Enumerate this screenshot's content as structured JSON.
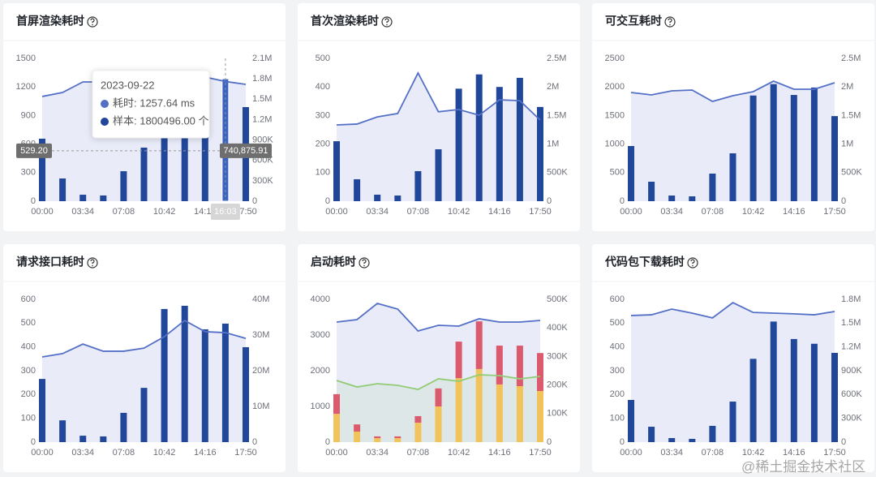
{
  "chart_data": [
    {
      "type": "combo",
      "title": "首屏渲染耗时",
      "categories": [
        "00:00",
        null,
        "03:34",
        null,
        "07:08",
        null,
        "10:42",
        null,
        "14:16",
        null,
        "17:50"
      ],
      "ylim": [
        0,
        1500
      ],
      "yticks": [
        0,
        300,
        600,
        900,
        1200,
        1500
      ],
      "y2lim": [
        0,
        2100000
      ],
      "y2ticks": [
        0,
        {
          "value": 300000,
          "label": "300K"
        },
        {
          "value": 600000,
          "label": "600K"
        },
        {
          "value": 900000,
          "label": "900K"
        },
        {
          "value": 1200000,
          "label": "1.2M"
        },
        {
          "value": 1500000,
          "label": "1.5M"
        },
        {
          "value": 1800000,
          "label": "1.8M"
        },
        {
          "value": 2100000,
          "label": "2.1M"
        }
      ],
      "series": [
        {
          "type": "line",
          "area": true,
          "color": "#5470c6",
          "values": [
            1100,
            1142,
            1253,
            1253,
            1250,
            1260,
            1270,
            1280,
            1304,
            1257.64,
            1227
          ]
        },
        {
          "type": "bar",
          "axis": "y2",
          "color": "#21479b",
          "values": [
            919000,
            334000,
            95000,
            84000,
            441000,
            788000,
            1100000,
            1500000,
            1700000,
            1800496,
            1384000
          ]
        }
      ],
      "hover_index": 9,
      "pointer": {
        "y": 529.2,
        "y_label": "529.20",
        "y2": 740875.91,
        "y2_label": "740,875.91",
        "x_label": "16:03"
      },
      "tooltip": {
        "title": "2023-09-22",
        "rows": [
          "耗时: 1257.64 ms",
          "样本: 1800496.00 个"
        ]
      }
    },
    {
      "type": "combo",
      "title": "首次渲染耗时",
      "categories": [
        "00:00",
        null,
        "03:34",
        null,
        "07:08",
        null,
        "10:42",
        null,
        "14:16",
        null,
        "17:50"
      ],
      "ylim": [
        0,
        500
      ],
      "yticks": [
        0,
        100,
        200,
        300,
        400,
        500
      ],
      "y2lim": [
        0,
        2500000
      ],
      "y2ticks": [
        0,
        {
          "value": 500000,
          "label": "500K"
        },
        {
          "value": 1000000,
          "label": "1M"
        },
        {
          "value": 1500000,
          "label": "1.5M"
        },
        {
          "value": 2000000,
          "label": "2M"
        },
        {
          "value": 2500000,
          "label": "2.5M"
        }
      ],
      "series": [
        {
          "type": "line",
          "area": true,
          "color": "#5470c6",
          "values": [
            267,
            270,
            295,
            307,
            449,
            313,
            321,
            301,
            355,
            352,
            284
          ]
        },
        {
          "type": "bar",
          "axis": "y2",
          "color": "#21479b",
          "values": [
            1050000,
            384000,
            114000,
            99000,
            526000,
            909000,
            1970000,
            2220000,
            2000000,
            2160000,
            1650000
          ]
        }
      ]
    },
    {
      "type": "combo",
      "title": "可交互耗时",
      "categories": [
        "00:00",
        null,
        "03:34",
        null,
        "07:08",
        null,
        "10:42",
        null,
        "14:16",
        null,
        "17:50"
      ],
      "ylim": [
        0,
        2500
      ],
      "yticks": [
        0,
        500,
        1000,
        1500,
        2000,
        2500
      ],
      "y2lim": [
        0,
        2500000
      ],
      "y2ticks": [
        0,
        {
          "value": 500000,
          "label": "500K"
        },
        {
          "value": 1000000,
          "label": "1M"
        },
        {
          "value": 1500000,
          "label": "1.5M"
        },
        {
          "value": 2000000,
          "label": "2M"
        },
        {
          "value": 2500000,
          "label": "2.5M"
        }
      ],
      "series": [
        {
          "type": "line",
          "area": true,
          "color": "#5470c6",
          "values": [
            1903,
            1861,
            1932,
            1946,
            1747,
            1847,
            1918,
            2102,
            1960,
            1960,
            2074
          ]
        },
        {
          "type": "bar",
          "axis": "y2",
          "color": "#21479b",
          "values": [
            966000,
            341000,
            99000,
            85000,
            483000,
            838000,
            1850000,
            2050000,
            1860000,
            1990000,
            1490000
          ]
        }
      ]
    },
    {
      "type": "combo",
      "title": "请求接口耗时",
      "categories": [
        "00:00",
        null,
        "03:34",
        null,
        "07:08",
        null,
        "10:42",
        null,
        "14:16",
        null,
        "17:50"
      ],
      "ylim": [
        0,
        600
      ],
      "yticks": [
        0,
        100,
        200,
        300,
        400,
        500,
        600
      ],
      "y2lim": [
        0,
        40000000
      ],
      "y2ticks": [
        0,
        {
          "value": 10000000,
          "label": "10M"
        },
        {
          "value": 20000000,
          "label": "20M"
        },
        {
          "value": 30000000,
          "label": "30M"
        },
        {
          "value": 40000000,
          "label": "40M"
        }
      ],
      "series": [
        {
          "type": "line",
          "area": true,
          "color": "#5470c6",
          "values": [
            358,
            372,
            412,
            382,
            382,
            395,
            443,
            511,
            464,
            460,
            436
          ]
        },
        {
          "type": "bar",
          "axis": "y2",
          "color": "#21479b",
          "values": [
            17700000,
            6100000,
            1800000,
            1600000,
            8200000,
            15200000,
            37300000,
            38200000,
            31600000,
            33200000,
            26600000
          ]
        }
      ]
    },
    {
      "type": "combo",
      "title": "启动耗时",
      "stacked": true,
      "categories": [
        "00:00",
        null,
        "03:34",
        null,
        "07:08",
        null,
        "10:42",
        null,
        "14:16",
        null,
        "17:50"
      ],
      "ylim": [
        0,
        4000
      ],
      "yticks": [
        0,
        1000,
        2000,
        3000,
        4000
      ],
      "y2lim": [
        0,
        500000
      ],
      "y2ticks": [
        0,
        {
          "value": 100000,
          "label": "100K"
        },
        {
          "value": 200000,
          "label": "200K"
        },
        {
          "value": 300000,
          "label": "300K"
        },
        {
          "value": 400000,
          "label": "400K"
        },
        {
          "value": 500000,
          "label": "500K"
        }
      ],
      "series": [
        {
          "type": "line",
          "area": true,
          "color": "#5470c6",
          "values": [
            3364,
            3432,
            3886,
            3727,
            3114,
            3273,
            3250,
            3455,
            3364,
            3364,
            3409
          ]
        },
        {
          "type": "line",
          "area": true,
          "color": "#91cc75",
          "values": [
            1727,
            1545,
            1636,
            1591,
            1477,
            1773,
            1705,
            1886,
            1864,
            1773,
            1841
          ]
        },
        {
          "type": "bar",
          "axis": "y2",
          "color": "#f2c35b",
          "values": [
            99000,
            37000,
            14000,
            14000,
            68000,
            125000,
            224000,
            256000,
            202000,
            196000,
            179000
          ]
        },
        {
          "type": "bar",
          "axis": "y2",
          "color": "#dc5a6e",
          "values": [
            69000,
            25000,
            6000,
            6000,
            23000,
            63000,
            128000,
            167000,
            136000,
            142000,
            133000
          ]
        }
      ]
    },
    {
      "type": "combo",
      "title": "代码包下载耗时",
      "categories": [
        "00:00",
        null,
        "03:34",
        null,
        "07:08",
        null,
        "10:42",
        null,
        "14:16",
        null,
        "17:50"
      ],
      "ylim": [
        0,
        600
      ],
      "yticks": [
        0,
        100,
        200,
        300,
        400,
        500,
        600
      ],
      "y2lim": [
        0,
        1800000
      ],
      "y2ticks": [
        0,
        {
          "value": 300000,
          "label": "300K"
        },
        {
          "value": 600000,
          "label": "600K"
        },
        {
          "value": 900000,
          "label": "900K"
        },
        {
          "value": 1200000,
          "label": "1.2M"
        },
        {
          "value": 1500000,
          "label": "1.5M"
        },
        {
          "value": 1800000,
          "label": "1.8M"
        }
      ],
      "series": [
        {
          "type": "line",
          "area": true,
          "color": "#5470c6",
          "values": [
            532,
            535,
            559,
            542,
            522,
            586,
            545,
            542,
            539,
            535,
            549
          ]
        },
        {
          "type": "bar",
          "axis": "y2",
          "color": "#21479b",
          "values": [
            532000,
            194000,
            51000,
            41000,
            205000,
            511000,
            1050000,
            1520000,
            1300000,
            1240000,
            1125000
          ]
        }
      ]
    }
  ],
  "watermark": "@稀土掘金技术社区"
}
